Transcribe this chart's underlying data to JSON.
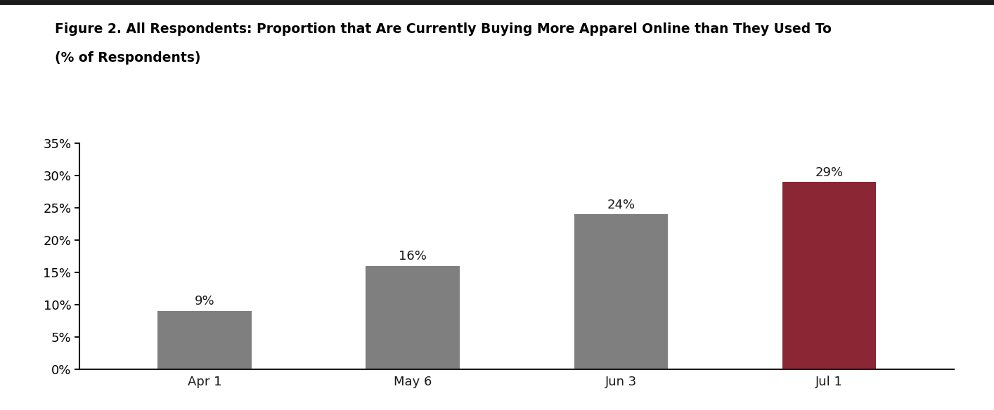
{
  "title_line1": "Figure 2. All Respondents: Proportion that Are Currently Buying More Apparel Online than They Used To",
  "title_line2": "(% of Respondents)",
  "categories": [
    "Apr 1",
    "May 6",
    "Jun 3",
    "Jul 1"
  ],
  "values": [
    0.09,
    0.16,
    0.24,
    0.29
  ],
  "bar_colors": [
    "#7f7f7f",
    "#7f7f7f",
    "#7f7f7f",
    "#8B2635"
  ],
  "bar_labels": [
    "9%",
    "16%",
    "24%",
    "29%"
  ],
  "ylim": [
    0,
    0.35
  ],
  "yticks": [
    0.0,
    0.05,
    0.1,
    0.15,
    0.2,
    0.25,
    0.3,
    0.35
  ],
  "ytick_labels": [
    "0%",
    "5%",
    "10%",
    "15%",
    "20%",
    "25%",
    "30%",
    "35%"
  ],
  "background_color": "#ffffff",
  "title_fontsize": 13.5,
  "tick_fontsize": 13,
  "label_fontsize": 13,
  "bar_width": 0.45,
  "top_border_color": "#1a1a1a",
  "spine_color": "#1a1a1a"
}
